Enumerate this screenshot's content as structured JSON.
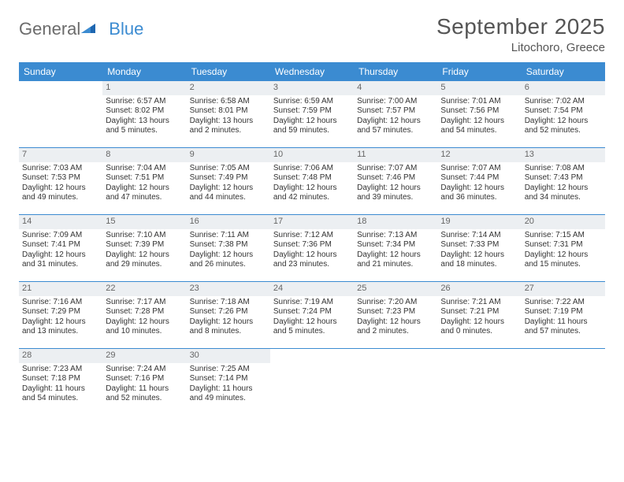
{
  "logo": {
    "text1": "General",
    "text2": "Blue"
  },
  "title": "September 2025",
  "location": "Litochoro, Greece",
  "colors": {
    "header_bg": "#3b8bd1",
    "header_text": "#ffffff",
    "daynum_bg": "#eceff2",
    "rule": "#3b8bd1",
    "body_text": "#333333",
    "title_text": "#555555",
    "logo_gray": "#6b6b6b",
    "logo_blue": "#3b8bd1",
    "page_bg": "#ffffff"
  },
  "typography": {
    "title_fontsize": 28,
    "location_fontsize": 15,
    "dayheader_fontsize": 12,
    "daynum_fontsize": 11,
    "cell_fontsize": 10,
    "logo_fontsize": 22
  },
  "day_headers": [
    "Sunday",
    "Monday",
    "Tuesday",
    "Wednesday",
    "Thursday",
    "Friday",
    "Saturday"
  ],
  "weeks": [
    [
      {
        "empty": true
      },
      {
        "day": "1",
        "sunrise": "Sunrise: 6:57 AM",
        "sunset": "Sunset: 8:02 PM",
        "daylight1": "Daylight: 13 hours",
        "daylight2": "and 5 minutes."
      },
      {
        "day": "2",
        "sunrise": "Sunrise: 6:58 AM",
        "sunset": "Sunset: 8:01 PM",
        "daylight1": "Daylight: 13 hours",
        "daylight2": "and 2 minutes."
      },
      {
        "day": "3",
        "sunrise": "Sunrise: 6:59 AM",
        "sunset": "Sunset: 7:59 PM",
        "daylight1": "Daylight: 12 hours",
        "daylight2": "and 59 minutes."
      },
      {
        "day": "4",
        "sunrise": "Sunrise: 7:00 AM",
        "sunset": "Sunset: 7:57 PM",
        "daylight1": "Daylight: 12 hours",
        "daylight2": "and 57 minutes."
      },
      {
        "day": "5",
        "sunrise": "Sunrise: 7:01 AM",
        "sunset": "Sunset: 7:56 PM",
        "daylight1": "Daylight: 12 hours",
        "daylight2": "and 54 minutes."
      },
      {
        "day": "6",
        "sunrise": "Sunrise: 7:02 AM",
        "sunset": "Sunset: 7:54 PM",
        "daylight1": "Daylight: 12 hours",
        "daylight2": "and 52 minutes."
      }
    ],
    [
      {
        "day": "7",
        "sunrise": "Sunrise: 7:03 AM",
        "sunset": "Sunset: 7:53 PM",
        "daylight1": "Daylight: 12 hours",
        "daylight2": "and 49 minutes."
      },
      {
        "day": "8",
        "sunrise": "Sunrise: 7:04 AM",
        "sunset": "Sunset: 7:51 PM",
        "daylight1": "Daylight: 12 hours",
        "daylight2": "and 47 minutes."
      },
      {
        "day": "9",
        "sunrise": "Sunrise: 7:05 AM",
        "sunset": "Sunset: 7:49 PM",
        "daylight1": "Daylight: 12 hours",
        "daylight2": "and 44 minutes."
      },
      {
        "day": "10",
        "sunrise": "Sunrise: 7:06 AM",
        "sunset": "Sunset: 7:48 PM",
        "daylight1": "Daylight: 12 hours",
        "daylight2": "and 42 minutes."
      },
      {
        "day": "11",
        "sunrise": "Sunrise: 7:07 AM",
        "sunset": "Sunset: 7:46 PM",
        "daylight1": "Daylight: 12 hours",
        "daylight2": "and 39 minutes."
      },
      {
        "day": "12",
        "sunrise": "Sunrise: 7:07 AM",
        "sunset": "Sunset: 7:44 PM",
        "daylight1": "Daylight: 12 hours",
        "daylight2": "and 36 minutes."
      },
      {
        "day": "13",
        "sunrise": "Sunrise: 7:08 AM",
        "sunset": "Sunset: 7:43 PM",
        "daylight1": "Daylight: 12 hours",
        "daylight2": "and 34 minutes."
      }
    ],
    [
      {
        "day": "14",
        "sunrise": "Sunrise: 7:09 AM",
        "sunset": "Sunset: 7:41 PM",
        "daylight1": "Daylight: 12 hours",
        "daylight2": "and 31 minutes."
      },
      {
        "day": "15",
        "sunrise": "Sunrise: 7:10 AM",
        "sunset": "Sunset: 7:39 PM",
        "daylight1": "Daylight: 12 hours",
        "daylight2": "and 29 minutes."
      },
      {
        "day": "16",
        "sunrise": "Sunrise: 7:11 AM",
        "sunset": "Sunset: 7:38 PM",
        "daylight1": "Daylight: 12 hours",
        "daylight2": "and 26 minutes."
      },
      {
        "day": "17",
        "sunrise": "Sunrise: 7:12 AM",
        "sunset": "Sunset: 7:36 PM",
        "daylight1": "Daylight: 12 hours",
        "daylight2": "and 23 minutes."
      },
      {
        "day": "18",
        "sunrise": "Sunrise: 7:13 AM",
        "sunset": "Sunset: 7:34 PM",
        "daylight1": "Daylight: 12 hours",
        "daylight2": "and 21 minutes."
      },
      {
        "day": "19",
        "sunrise": "Sunrise: 7:14 AM",
        "sunset": "Sunset: 7:33 PM",
        "daylight1": "Daylight: 12 hours",
        "daylight2": "and 18 minutes."
      },
      {
        "day": "20",
        "sunrise": "Sunrise: 7:15 AM",
        "sunset": "Sunset: 7:31 PM",
        "daylight1": "Daylight: 12 hours",
        "daylight2": "and 15 minutes."
      }
    ],
    [
      {
        "day": "21",
        "sunrise": "Sunrise: 7:16 AM",
        "sunset": "Sunset: 7:29 PM",
        "daylight1": "Daylight: 12 hours",
        "daylight2": "and 13 minutes."
      },
      {
        "day": "22",
        "sunrise": "Sunrise: 7:17 AM",
        "sunset": "Sunset: 7:28 PM",
        "daylight1": "Daylight: 12 hours",
        "daylight2": "and 10 minutes."
      },
      {
        "day": "23",
        "sunrise": "Sunrise: 7:18 AM",
        "sunset": "Sunset: 7:26 PM",
        "daylight1": "Daylight: 12 hours",
        "daylight2": "and 8 minutes."
      },
      {
        "day": "24",
        "sunrise": "Sunrise: 7:19 AM",
        "sunset": "Sunset: 7:24 PM",
        "daylight1": "Daylight: 12 hours",
        "daylight2": "and 5 minutes."
      },
      {
        "day": "25",
        "sunrise": "Sunrise: 7:20 AM",
        "sunset": "Sunset: 7:23 PM",
        "daylight1": "Daylight: 12 hours",
        "daylight2": "and 2 minutes."
      },
      {
        "day": "26",
        "sunrise": "Sunrise: 7:21 AM",
        "sunset": "Sunset: 7:21 PM",
        "daylight1": "Daylight: 12 hours",
        "daylight2": "and 0 minutes."
      },
      {
        "day": "27",
        "sunrise": "Sunrise: 7:22 AM",
        "sunset": "Sunset: 7:19 PM",
        "daylight1": "Daylight: 11 hours",
        "daylight2": "and 57 minutes."
      }
    ],
    [
      {
        "day": "28",
        "sunrise": "Sunrise: 7:23 AM",
        "sunset": "Sunset: 7:18 PM",
        "daylight1": "Daylight: 11 hours",
        "daylight2": "and 54 minutes."
      },
      {
        "day": "29",
        "sunrise": "Sunrise: 7:24 AM",
        "sunset": "Sunset: 7:16 PM",
        "daylight1": "Daylight: 11 hours",
        "daylight2": "and 52 minutes."
      },
      {
        "day": "30",
        "sunrise": "Sunrise: 7:25 AM",
        "sunset": "Sunset: 7:14 PM",
        "daylight1": "Daylight: 11 hours",
        "daylight2": "and 49 minutes."
      },
      {
        "empty": true
      },
      {
        "empty": true
      },
      {
        "empty": true
      },
      {
        "empty": true
      }
    ]
  ]
}
